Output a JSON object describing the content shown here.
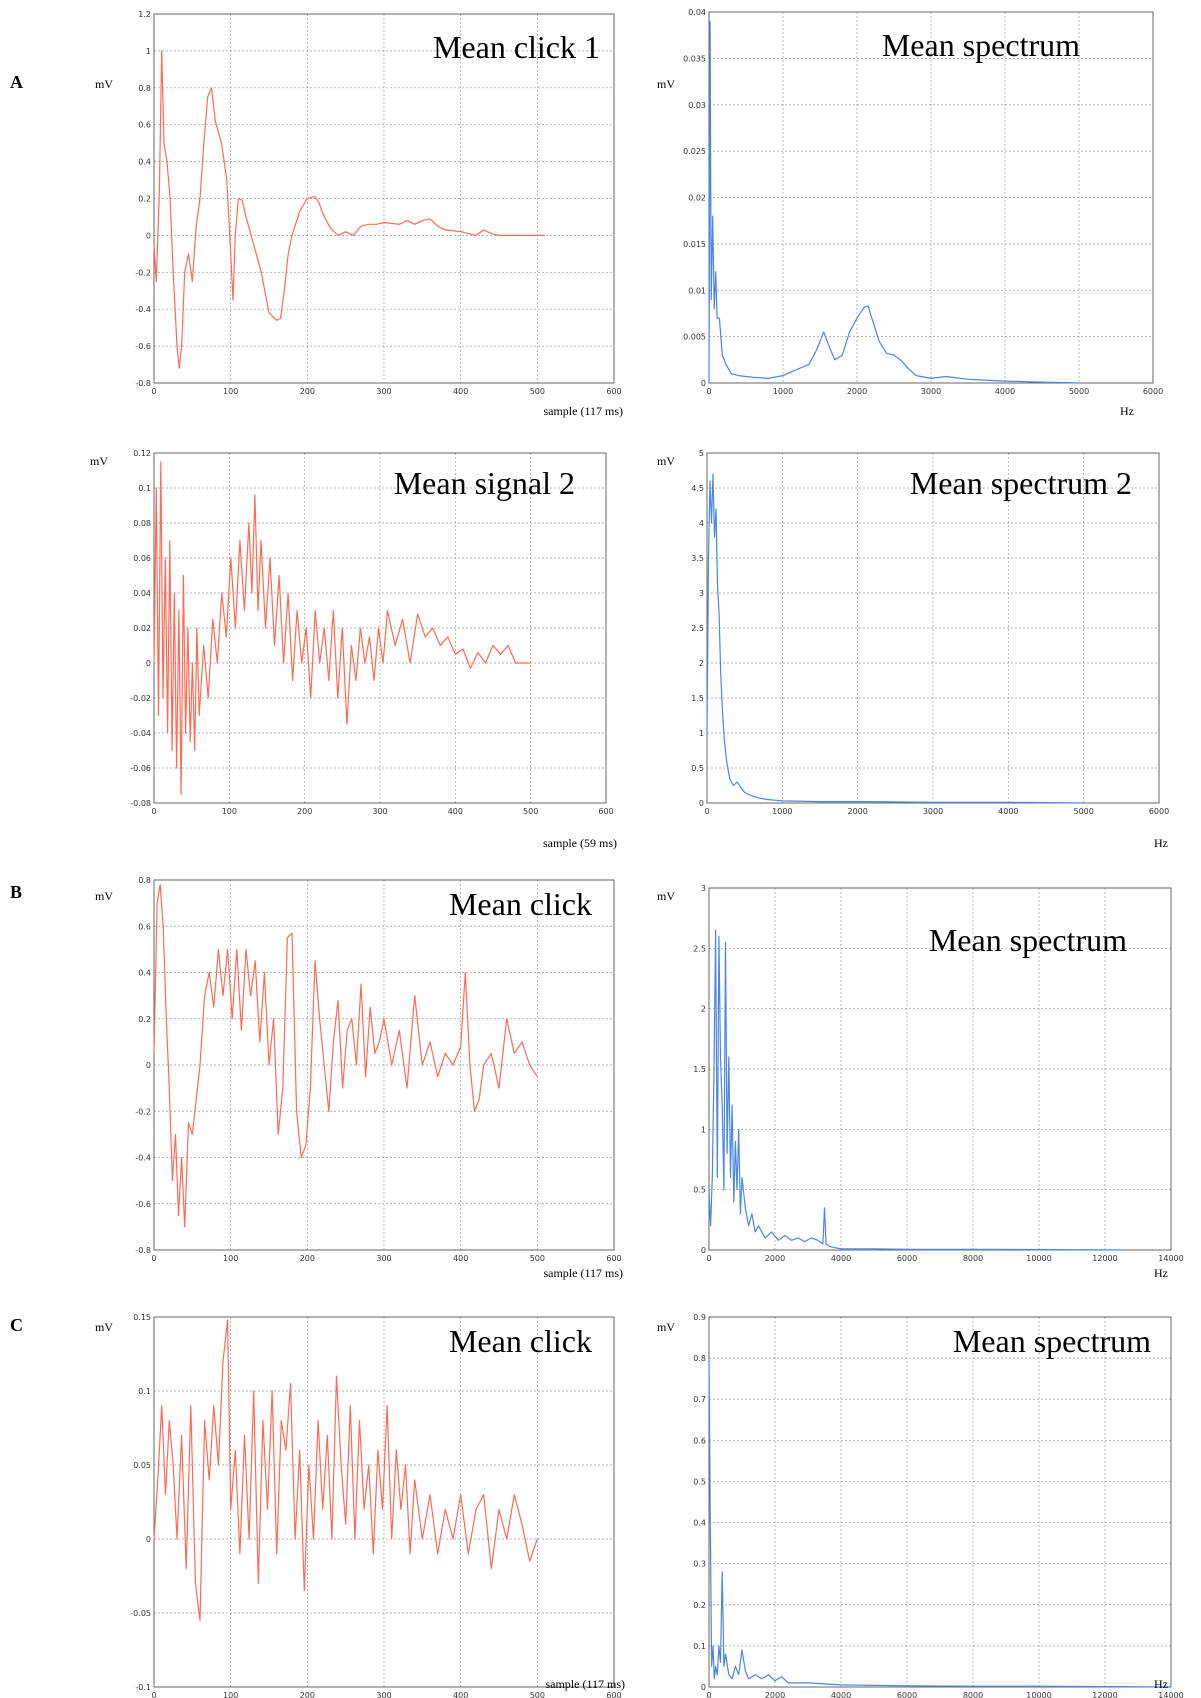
{
  "panel_labels": [
    "A",
    "B",
    "C"
  ],
  "colors": {
    "signal": "#ff6a55",
    "spectrum": "#4a86e8",
    "grid": "#9a9a9a",
    "frame": "#666666"
  },
  "chart_data": [
    {
      "type": "line",
      "title": "Mean click 1",
      "xlabel": "sample (117 ms)",
      "ylabel": "mV",
      "xlim": [
        0,
        600
      ],
      "ylim": [
        -0.8,
        1.2
      ],
      "xticks": [
        "0",
        "100",
        "200",
        "300",
        "400",
        "500",
        "600"
      ],
      "yticks": [
        "-0.8",
        "-0.6",
        "-0.4",
        "-0.2",
        "0",
        "0.2",
        "0.4",
        "0.6",
        "0.8",
        "1",
        "1.2"
      ],
      "color": "#ff6a55",
      "x": [
        0,
        3,
        7,
        10,
        13,
        17,
        21,
        25,
        30,
        33,
        36,
        40,
        45,
        50,
        55,
        60,
        65,
        70,
        75,
        80,
        88,
        95,
        100,
        103,
        106,
        110,
        115,
        120,
        130,
        140,
        150,
        160,
        165,
        170,
        175,
        180,
        190,
        200,
        210,
        215,
        220,
        230,
        240,
        250,
        260,
        270,
        280,
        290,
        300,
        320,
        330,
        340,
        350,
        360,
        370,
        380,
        400,
        420,
        430,
        440,
        450,
        460,
        480,
        500,
        510
      ],
      "y": [
        -0.05,
        -0.25,
        0.25,
        1.0,
        0.5,
        0.4,
        0.2,
        -0.2,
        -0.6,
        -0.72,
        -0.6,
        -0.2,
        -0.1,
        -0.25,
        0.05,
        0.2,
        0.5,
        0.75,
        0.8,
        0.62,
        0.5,
        0.3,
        -0.1,
        -0.35,
        0.0,
        0.2,
        0.19,
        0.1,
        -0.05,
        -0.2,
        -0.42,
        -0.46,
        -0.45,
        -0.3,
        -0.1,
        0.0,
        0.13,
        0.2,
        0.21,
        0.18,
        0.12,
        0.04,
        0.0,
        0.02,
        0.0,
        0.05,
        0.06,
        0.06,
        0.07,
        0.06,
        0.08,
        0.06,
        0.08,
        0.09,
        0.05,
        0.03,
        0.02,
        0.0,
        0.03,
        0.01,
        0.0,
        0.0,
        0.0,
        0.0,
        0.0
      ]
    },
    {
      "type": "line",
      "title": "Mean spectrum",
      "xlabel": "Hz",
      "ylabel": "mV",
      "xlim": [
        0,
        6000
      ],
      "ylim": [
        0,
        0.04
      ],
      "xticks": [
        "0",
        "1000",
        "2000",
        "3000",
        "4000",
        "5000",
        "6000"
      ],
      "yticks": [
        "0",
        "0.005",
        "0.01",
        "0.015",
        "0.02",
        "0.025",
        "0.03",
        "0.035",
        "0.04"
      ],
      "color": "#4a86e8",
      "x": [
        0,
        15,
        30,
        50,
        70,
        90,
        110,
        140,
        180,
        230,
        300,
        400,
        600,
        800,
        1000,
        1200,
        1350,
        1450,
        1550,
        1620,
        1700,
        1800,
        1900,
        2000,
        2100,
        2150,
        2200,
        2300,
        2400,
        2500,
        2600,
        2700,
        2800,
        3000,
        3200,
        3500,
        4000,
        4500,
        5000
      ],
      "y": [
        0.0,
        0.039,
        0.009,
        0.018,
        0.008,
        0.012,
        0.007,
        0.007,
        0.003,
        0.002,
        0.001,
        0.0008,
        0.0006,
        0.0005,
        0.0008,
        0.0015,
        0.002,
        0.0035,
        0.0055,
        0.004,
        0.0025,
        0.003,
        0.0055,
        0.007,
        0.0082,
        0.0083,
        0.007,
        0.0045,
        0.0032,
        0.003,
        0.0024,
        0.0015,
        0.0008,
        0.0005,
        0.0007,
        0.0004,
        0.0002,
        0.0001,
        0.0
      ]
    },
    {
      "type": "line",
      "title": "Mean signal 2",
      "xlabel": "sample (59 ms)",
      "ylabel": "mV",
      "xlim": [
        0,
        600
      ],
      "ylim": [
        -0.08,
        0.12
      ],
      "xticks": [
        "0",
        "100",
        "200",
        "300",
        "400",
        "500",
        "600"
      ],
      "yticks": [
        "-0.08",
        "-0.06",
        "-0.04",
        "-0.02",
        "0",
        "0.02",
        "0.04",
        "0.06",
        "0.08",
        "0.1",
        "0.12"
      ],
      "color": "#ff6a55",
      "x": [
        0,
        3,
        6,
        9,
        12,
        15,
        18,
        21,
        24,
        27,
        30,
        33,
        36,
        39,
        42,
        45,
        48,
        51,
        54,
        57,
        60,
        66,
        72,
        78,
        84,
        90,
        96,
        102,
        108,
        114,
        120,
        126,
        130,
        134,
        138,
        142,
        148,
        154,
        160,
        166,
        172,
        178,
        184,
        190,
        196,
        202,
        208,
        214,
        220,
        226,
        232,
        238,
        244,
        250,
        256,
        262,
        268,
        274,
        280,
        286,
        292,
        298,
        304,
        310,
        320,
        330,
        340,
        350,
        360,
        370,
        380,
        390,
        400,
        410,
        420,
        430,
        440,
        450,
        460,
        470,
        480,
        490,
        500
      ],
      "y": [
        0.0,
        0.1,
        -0.03,
        0.115,
        -0.02,
        0.06,
        -0.04,
        0.07,
        -0.05,
        0.04,
        -0.06,
        0.03,
        -0.075,
        0.05,
        -0.04,
        0.02,
        -0.045,
        0.0,
        -0.05,
        0.02,
        -0.03,
        0.01,
        -0.02,
        0.025,
        0.0,
        0.04,
        0.015,
        0.06,
        0.02,
        0.07,
        0.03,
        0.08,
        0.04,
        0.096,
        0.03,
        0.07,
        0.02,
        0.06,
        0.01,
        0.05,
        0.0,
        0.04,
        -0.01,
        0.03,
        0.0,
        0.02,
        -0.02,
        0.03,
        0.0,
        0.02,
        -0.01,
        0.03,
        -0.02,
        0.02,
        -0.035,
        0.01,
        -0.01,
        0.02,
        0.0,
        0.015,
        -0.01,
        0.02,
        0.0,
        0.03,
        0.01,
        0.025,
        0.0,
        0.028,
        0.015,
        0.02,
        0.01,
        0.015,
        0.005,
        0.008,
        -0.003,
        0.006,
        0.0,
        0.01,
        0.005,
        0.01,
        0.0,
        0.0,
        0.0
      ]
    },
    {
      "type": "line",
      "title": "Mean spectrum 2",
      "xlabel": "Hz",
      "ylabel": "mV",
      "xlim": [
        0,
        6000
      ],
      "ylim": [
        0,
        5
      ],
      "xticks": [
        "0",
        "1000",
        "2000",
        "3000",
        "4000",
        "5000",
        "6000"
      ],
      "yticks": [
        "0",
        "0.5",
        "1",
        "1.5",
        "2",
        "2.5",
        "3",
        "3.5",
        "4",
        "4.5",
        "5"
      ],
      "color": "#4a86e8",
      "x": [
        0,
        20,
        40,
        60,
        80,
        100,
        120,
        140,
        160,
        180,
        200,
        230,
        260,
        300,
        350,
        400,
        450,
        500,
        600,
        700,
        800,
        900,
        1000,
        1500,
        2000,
        3000,
        4000,
        5000
      ],
      "y": [
        1.0,
        3.5,
        4.6,
        4.0,
        4.7,
        3.8,
        4.2,
        3.1,
        2.7,
        1.9,
        1.4,
        0.9,
        0.6,
        0.35,
        0.25,
        0.3,
        0.22,
        0.15,
        0.1,
        0.07,
        0.05,
        0.04,
        0.03,
        0.02,
        0.02,
        0.01,
        0.01,
        0.0
      ]
    },
    {
      "type": "line",
      "title": "Mean click",
      "xlabel": "sample (117 ms)",
      "ylabel": "mV",
      "xlim": [
        0,
        600
      ],
      "ylim": [
        -0.8,
        0.8
      ],
      "xticks": [
        "0",
        "100",
        "200",
        "300",
        "400",
        "500",
        "600"
      ],
      "yticks": [
        "-0.8",
        "-0.6",
        "-0.4",
        "-0.2",
        "0",
        "0.2",
        "0.4",
        "0.6",
        "0.8"
      ],
      "color": "#ff6a55",
      "x": [
        0,
        4,
        8,
        12,
        16,
        20,
        24,
        28,
        32,
        36,
        40,
        45,
        50,
        55,
        60,
        66,
        72,
        78,
        84,
        90,
        96,
        102,
        108,
        114,
        120,
        126,
        132,
        138,
        144,
        150,
        156,
        162,
        168,
        174,
        180,
        186,
        192,
        198,
        204,
        210,
        216,
        222,
        228,
        234,
        240,
        246,
        252,
        258,
        264,
        270,
        276,
        282,
        288,
        294,
        300,
        310,
        320,
        330,
        340,
        350,
        360,
        370,
        380,
        390,
        400,
        406,
        412,
        418,
        424,
        430,
        440,
        450,
        460,
        470,
        480,
        490,
        500
      ],
      "y": [
        0.05,
        0.7,
        0.78,
        0.6,
        0.2,
        -0.1,
        -0.5,
        -0.3,
        -0.65,
        -0.4,
        -0.7,
        -0.25,
        -0.3,
        -0.15,
        0.0,
        0.3,
        0.4,
        0.25,
        0.5,
        0.3,
        0.5,
        0.2,
        0.5,
        0.15,
        0.5,
        0.3,
        0.45,
        0.1,
        0.4,
        0.0,
        0.2,
        -0.3,
        -0.1,
        0.55,
        0.57,
        -0.2,
        -0.4,
        -0.35,
        -0.1,
        0.45,
        0.2,
        0.0,
        -0.2,
        0.1,
        0.28,
        -0.1,
        0.15,
        0.2,
        0.0,
        0.35,
        -0.05,
        0.25,
        0.05,
        0.1,
        0.2,
        0.0,
        0.15,
        -0.1,
        0.3,
        0.0,
        0.1,
        -0.05,
        0.05,
        0.0,
        0.08,
        0.4,
        0.0,
        -0.2,
        -0.15,
        0.0,
        0.05,
        -0.1,
        0.2,
        0.05,
        0.1,
        0.0,
        -0.05
      ]
    },
    {
      "type": "line",
      "title": "Mean spectrum",
      "xlabel": "Hz",
      "ylabel": "mV",
      "xlim": [
        0,
        14000
      ],
      "ylim": [
        0,
        3
      ],
      "xticks": [
        "0",
        "2000",
        "4000",
        "6000",
        "8000",
        "10000",
        "12000",
        "14000"
      ],
      "yticks": [
        "0",
        "0.5",
        "1",
        "1.5",
        "2",
        "2.5",
        "3"
      ],
      "color": "#4a86e8",
      "x": [
        0,
        50,
        100,
        150,
        200,
        250,
        300,
        350,
        400,
        450,
        500,
        550,
        600,
        650,
        700,
        750,
        800,
        850,
        900,
        950,
        1000,
        1100,
        1200,
        1300,
        1400,
        1500,
        1700,
        1900,
        2100,
        2300,
        2500,
        2700,
        2900,
        3100,
        3300,
        3450,
        3500,
        3550,
        3650,
        3800,
        4000,
        5000,
        6000,
        8000,
        10000,
        12000,
        12500
      ],
      "y": [
        0.5,
        0.2,
        0.6,
        1.5,
        2.65,
        0.6,
        2.6,
        1.6,
        1.2,
        0.5,
        2.55,
        0.8,
        1.6,
        0.6,
        1.2,
        0.4,
        0.9,
        0.5,
        1.0,
        0.3,
        0.6,
        0.35,
        0.2,
        0.3,
        0.15,
        0.2,
        0.1,
        0.15,
        0.08,
        0.12,
        0.08,
        0.1,
        0.07,
        0.1,
        0.08,
        0.05,
        0.35,
        0.05,
        0.03,
        0.02,
        0.01,
        0.01,
        0.005,
        0.005,
        0.003,
        0.002,
        0.0
      ]
    },
    {
      "type": "line",
      "title": "Mean click",
      "xlabel": "sample (117 ms)",
      "ylabel": "mV",
      "xlim": [
        0,
        600
      ],
      "ylim": [
        -0.1,
        0.15
      ],
      "xticks": [
        "0",
        "100",
        "200",
        "300",
        "400",
        "500",
        "600"
      ],
      "yticks": [
        "-0.1",
        "-0.05",
        "0",
        "0.05",
        "0.1",
        "0.15"
      ],
      "color": "#ff6a55",
      "x": [
        0,
        5,
        10,
        15,
        20,
        25,
        30,
        36,
        42,
        48,
        54,
        60,
        66,
        72,
        78,
        84,
        90,
        96,
        100,
        106,
        112,
        118,
        124,
        130,
        136,
        142,
        148,
        154,
        160,
        166,
        172,
        178,
        184,
        190,
        196,
        202,
        208,
        214,
        220,
        226,
        232,
        238,
        244,
        250,
        256,
        262,
        268,
        274,
        280,
        286,
        292,
        298,
        304,
        310,
        316,
        322,
        328,
        334,
        340,
        350,
        360,
        370,
        380,
        390,
        400,
        410,
        420,
        430,
        440,
        450,
        460,
        470,
        480,
        490,
        500
      ],
      "y": [
        0.0,
        0.04,
        0.09,
        0.03,
        0.08,
        0.05,
        0.0,
        0.07,
        -0.02,
        0.09,
        -0.03,
        -0.055,
        0.08,
        0.04,
        0.09,
        0.05,
        0.12,
        0.148,
        0.02,
        0.06,
        -0.01,
        0.07,
        0.0,
        0.1,
        -0.03,
        0.08,
        0.02,
        0.1,
        -0.01,
        0.08,
        0.06,
        0.105,
        0.0,
        0.06,
        -0.035,
        0.05,
        0.0,
        0.08,
        0.02,
        0.07,
        0.0,
        0.11,
        0.05,
        0.01,
        0.09,
        0.0,
        0.08,
        0.02,
        0.05,
        -0.01,
        0.06,
        0.02,
        0.09,
        0.0,
        0.06,
        0.02,
        0.05,
        -0.01,
        0.04,
        0.0,
        0.03,
        -0.01,
        0.02,
        0.0,
        0.03,
        -0.01,
        0.02,
        0.03,
        -0.02,
        0.02,
        0.0,
        0.03,
        0.01,
        -0.015,
        0.0
      ]
    },
    {
      "type": "line",
      "title": "Mean spectrum",
      "xlabel": "Hz",
      "ylabel": "mV",
      "xlim": [
        0,
        14000
      ],
      "ylim": [
        0,
        0.9
      ],
      "xticks": [
        "0",
        "2000",
        "4000",
        "6000",
        "8000",
        "10000",
        "12000",
        "14000"
      ],
      "yticks": [
        "0",
        "0.1",
        "0.2",
        "0.3",
        "0.4",
        "0.5",
        "0.6",
        "0.7",
        "0.8",
        "0.9"
      ],
      "color": "#4a86e8",
      "x": [
        0,
        40,
        80,
        120,
        160,
        200,
        250,
        300,
        350,
        400,
        450,
        500,
        600,
        700,
        800,
        900,
        1000,
        1100,
        1200,
        1400,
        1600,
        1800,
        2000,
        2200,
        2400,
        3000,
        4000,
        6000,
        8000,
        10000,
        12000,
        14000
      ],
      "y": [
        0.8,
        0.4,
        0.05,
        0.1,
        0.02,
        0.05,
        0.03,
        0.1,
        0.06,
        0.28,
        0.05,
        0.08,
        0.03,
        0.02,
        0.05,
        0.03,
        0.09,
        0.04,
        0.02,
        0.03,
        0.02,
        0.03,
        0.015,
        0.025,
        0.01,
        0.01,
        0.005,
        0.003,
        0.002,
        0.002,
        0.001,
        0.0
      ]
    }
  ]
}
